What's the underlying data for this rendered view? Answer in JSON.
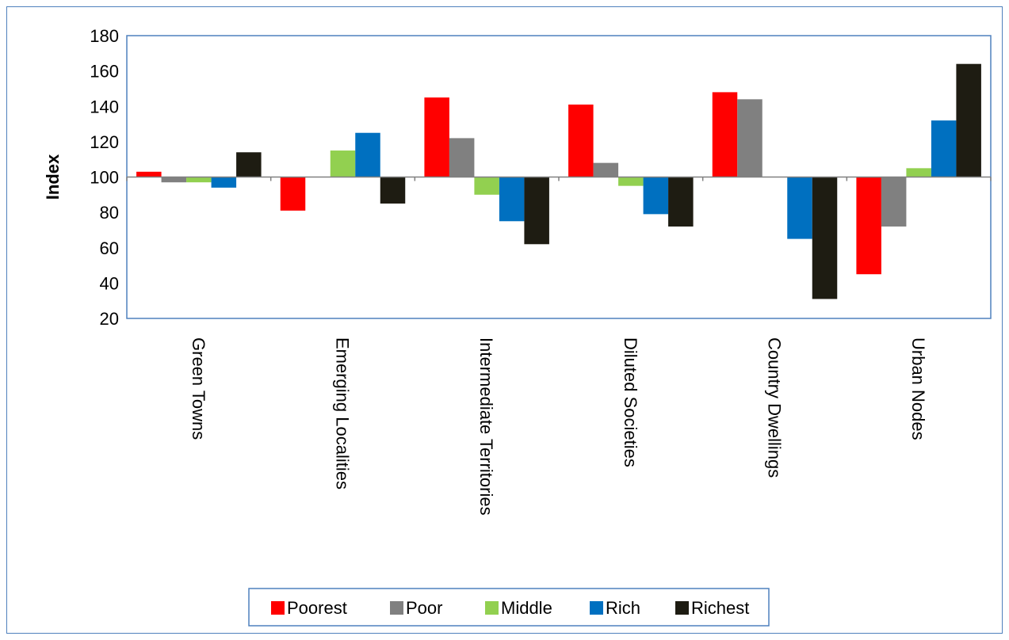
{
  "chart_data": {
    "type": "bar",
    "title": "",
    "xlabel": "",
    "ylabel": "Index",
    "baseline": 100,
    "ylim": [
      20,
      180
    ],
    "yticks": [
      20,
      40,
      60,
      80,
      100,
      120,
      140,
      160,
      180
    ],
    "grid": false,
    "legend_position": "bottom",
    "categories": [
      "Green Towns",
      "Emerging Localities",
      "Intermediate Territories",
      "Diluted Societies",
      "Country Dwellings",
      "Urban Nodes"
    ],
    "series": [
      {
        "name": "Poorest",
        "color": "#ff0000",
        "values": [
          103,
          81,
          145,
          141,
          148,
          45
        ]
      },
      {
        "name": "Poor",
        "color": "#808080",
        "values": [
          97,
          100,
          122,
          108,
          144,
          72
        ]
      },
      {
        "name": "Middle",
        "color": "#92d050",
        "values": [
          97,
          115,
          90,
          95,
          100,
          105
        ]
      },
      {
        "name": "Rich",
        "color": "#0070c0",
        "values": [
          94,
          125,
          75,
          79,
          65,
          132
        ]
      },
      {
        "name": "Richest",
        "color": "#1e1c12",
        "values": [
          114,
          85,
          62,
          72,
          31,
          164
        ]
      }
    ]
  }
}
